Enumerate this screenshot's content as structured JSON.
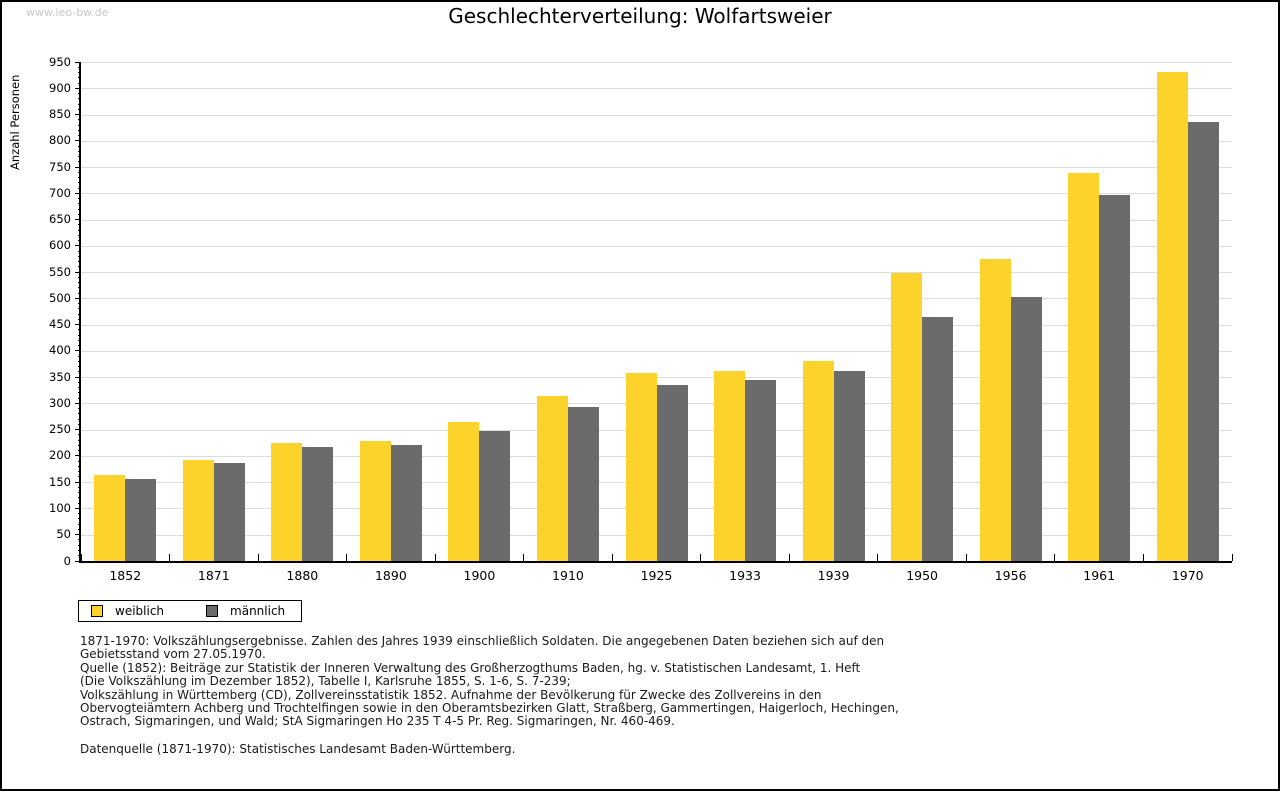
{
  "page": {
    "watermark": "www.leo-bw.de",
    "title": "Geschlechterverteilung: Wolfartsweier"
  },
  "chart_data": {
    "type": "bar",
    "title": "Geschlechterverteilung: Wolfartsweier",
    "xlabel": "",
    "ylabel": "Anzahl Personen",
    "ylim": [
      0,
      950
    ],
    "ytick_step": 50,
    "ytick_minor_step": 10,
    "grid": true,
    "legend_position": "bottom-left",
    "categories": [
      "1852",
      "1871",
      "1880",
      "1890",
      "1900",
      "1910",
      "1925",
      "1933",
      "1939",
      "1950",
      "1956",
      "1961",
      "1970"
    ],
    "series": [
      {
        "name": "weiblich",
        "color": "#FDD32B",
        "values": [
          164,
          192,
          225,
          228,
          264,
          314,
          357,
          362,
          381,
          549,
          575,
          738,
          931
        ]
      },
      {
        "name": "männlich",
        "color": "#6B6B6B",
        "values": [
          157,
          186,
          217,
          220,
          247,
          293,
          335,
          345,
          362,
          464,
          503,
          697,
          835
        ]
      }
    ],
    "colors": {
      "gridline": "#DCDCDC",
      "axis": "#000000"
    }
  },
  "footer": {
    "lines": [
      "1871-1970: Volkszählungsergebnisse. Zahlen des Jahres 1939 einschließlich Soldaten. Die angegebenen Daten beziehen sich auf den",
      "Gebietsstand vom 27.05.1970.",
      "Quelle (1852): Beiträge zur Statistik der Inneren Verwaltung des Großherzogthums Baden, hg. v. Statistischen Landesamt, 1. Heft",
      "(Die Volkszählung im Dezember 1852), Tabelle I, Karlsruhe 1855, S. 1-6, S. 7-239;",
      "Volkszählung in Württemberg (CD), Zollvereinsstatistik 1852. Aufnahme der Bevölkerung für Zwecke des Zollvereins in den",
      "Obervogteiämtern Achberg und Trochtelfingen sowie in den Oberamtsbezirken Glatt, Straßberg, Gammertingen, Haigerloch, Hechingen,",
      "Ostrach, Sigmaringen, und Wald; StA Sigmaringen Ho 235 T 4-5 Pr. Reg. Sigmaringen, Nr. 460-469."
    ],
    "datasource": "Datenquelle (1871-1970): Statistisches Landesamt Baden-Württemberg."
  }
}
